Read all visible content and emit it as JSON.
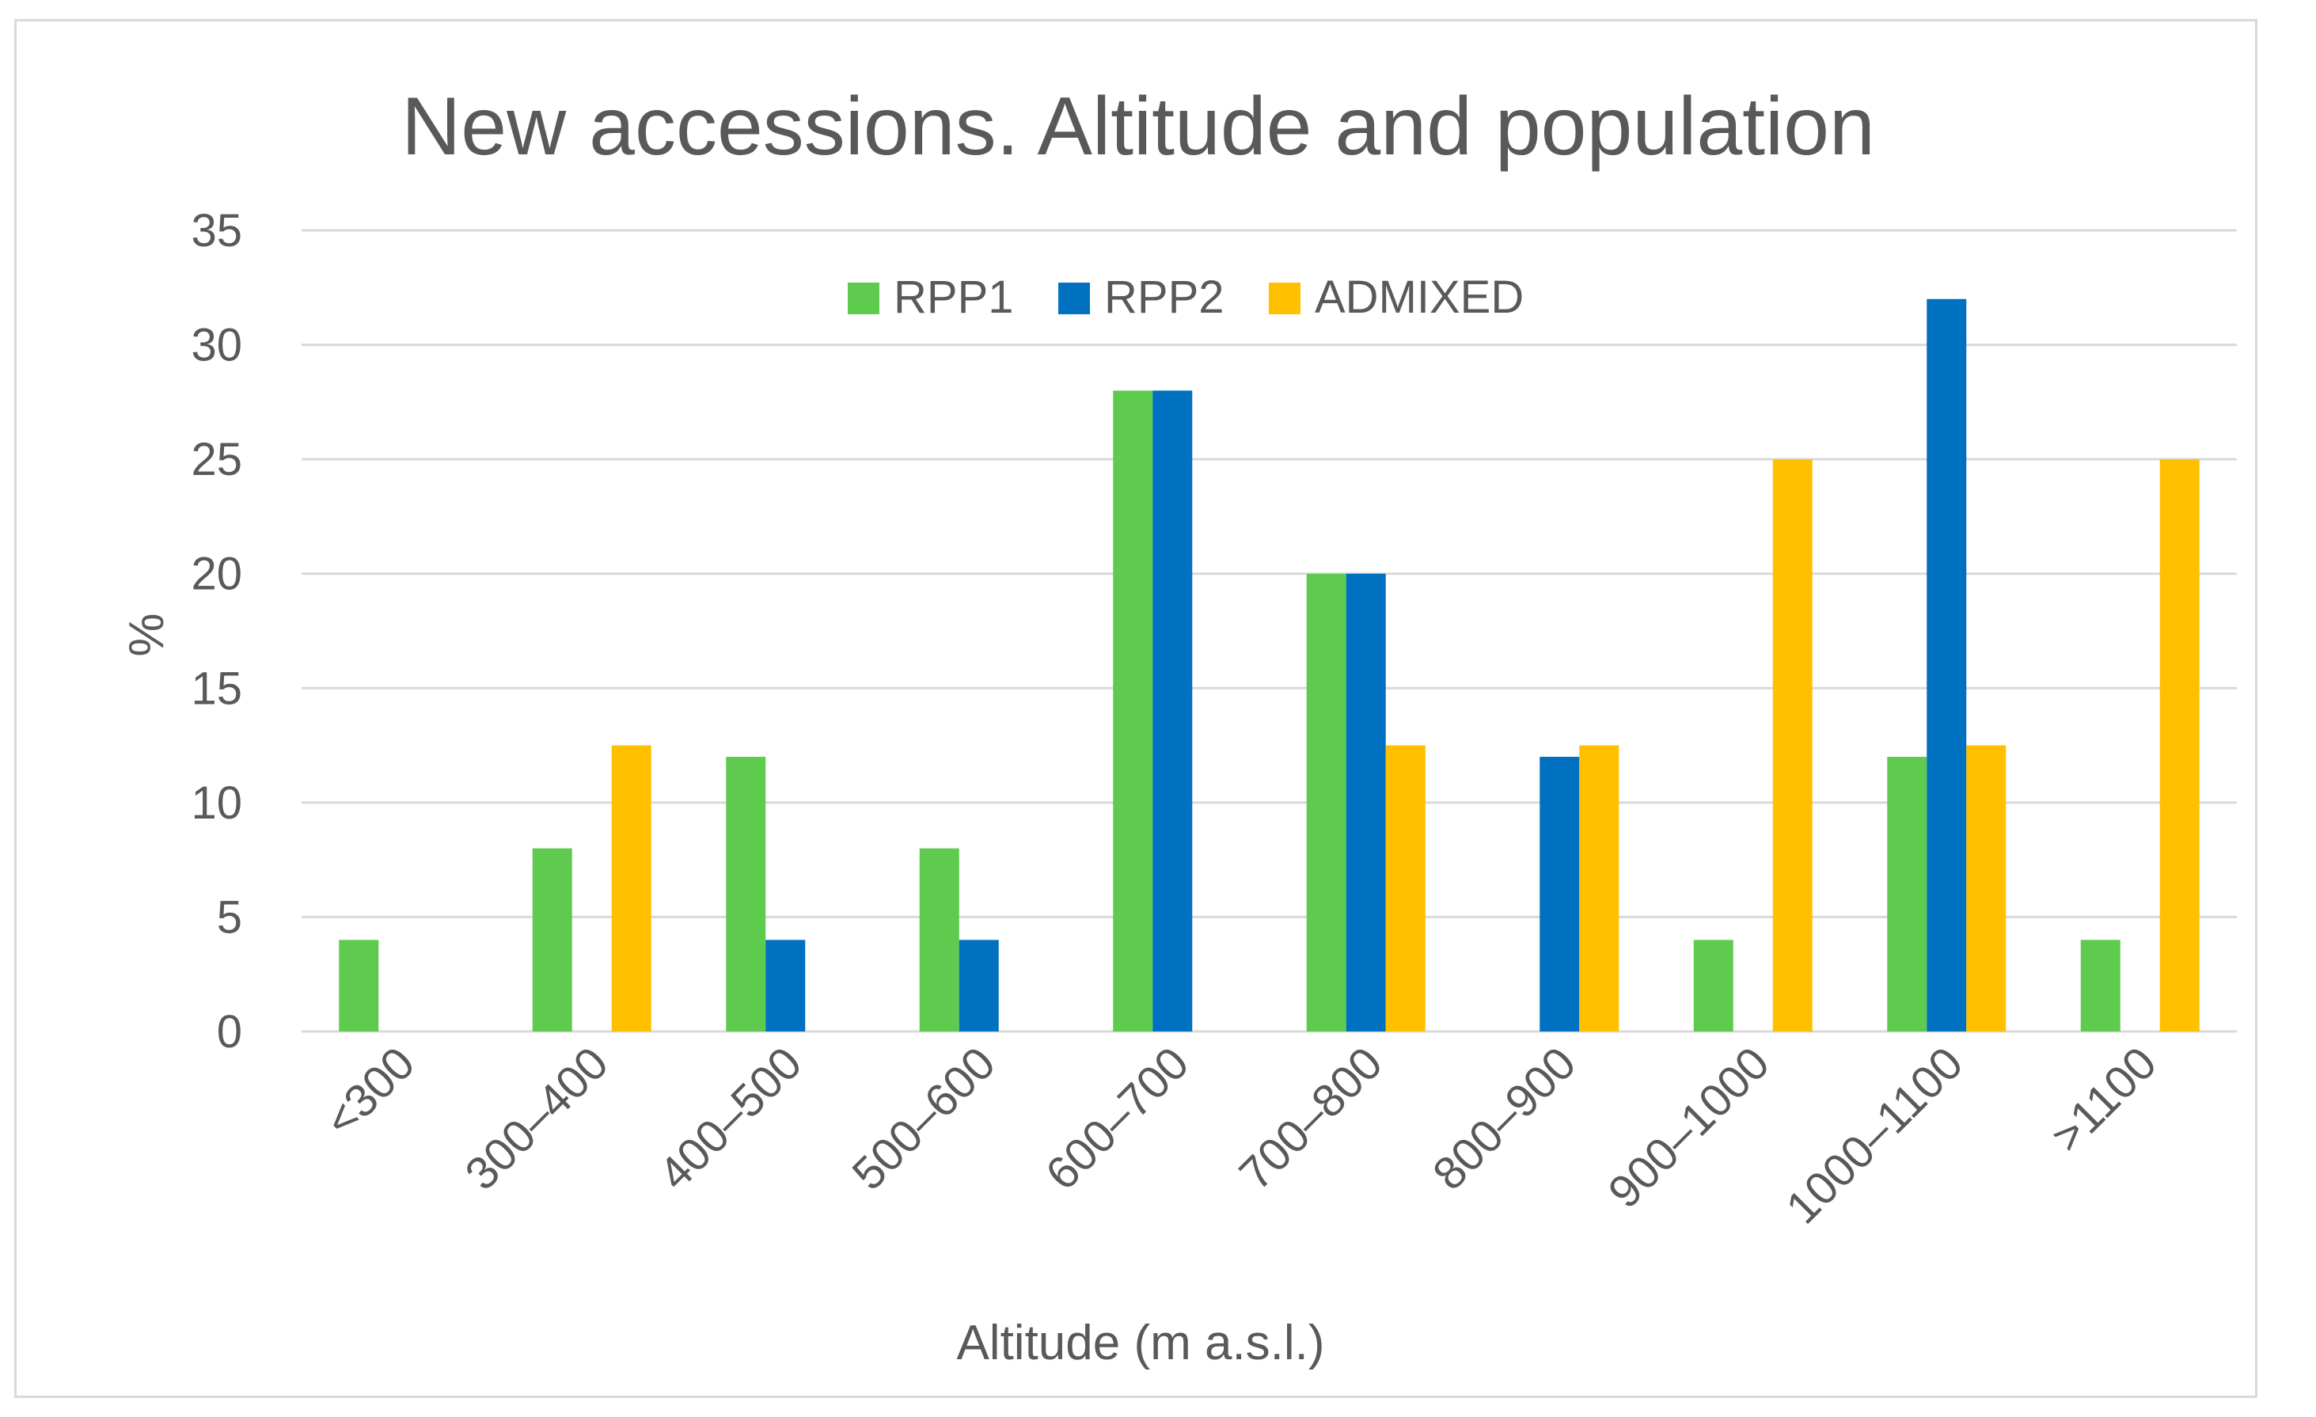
{
  "chart_data": {
    "type": "bar",
    "title": "New accessions. Altitude and population",
    "xlabel": "Altitude (m a.s.l.)",
    "ylabel": "%",
    "ylim": [
      0,
      35
    ],
    "yticks": [
      0,
      5,
      10,
      15,
      20,
      25,
      30,
      35
    ],
    "grid": true,
    "legend_position": "top",
    "categories": [
      "<300",
      "300–400",
      "400–500",
      "500–600",
      "600–700",
      "700–800",
      "800–900",
      "900–1000",
      "1000–1100",
      ">1100"
    ],
    "series": [
      {
        "name": "RPP1",
        "color": "#5ecb4e",
        "values": [
          4,
          8,
          12,
          8,
          28,
          20,
          0,
          4,
          12,
          4
        ]
      },
      {
        "name": "RPP2",
        "color": "#0070c0",
        "values": [
          0,
          0,
          4,
          4,
          28,
          20,
          12,
          0,
          32,
          0
        ]
      },
      {
        "name": "ADMIXED",
        "color": "#ffc000",
        "values": [
          0,
          12.5,
          0,
          0,
          0,
          12.5,
          12.5,
          25,
          12.5,
          25
        ]
      }
    ]
  }
}
